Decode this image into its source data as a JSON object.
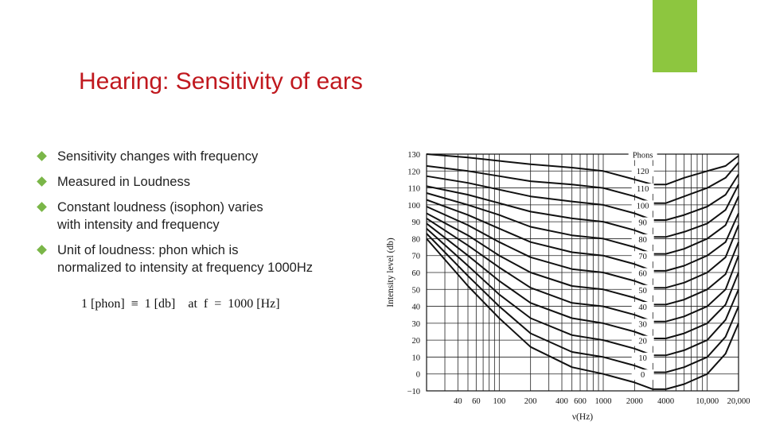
{
  "slide": {
    "title": "Hearing: Sensitivity of ears",
    "title_color": "#c0181e",
    "accent_color": "#8dc63f",
    "bullet_color": "#7ab648",
    "bullets": [
      "Sensitivity changes with frequency",
      "Measured in Loudness",
      "Constant loudness (isophon) varies\n with intensity and frequency",
      "Unit of loudness: phon which is\nnormalized to intensity at frequency 1000Hz"
    ],
    "formula": "1 [phon]  ≡  1 [db]    at  f  =  1000 [Hz]"
  },
  "chart_data": {
    "type": "line",
    "title": "",
    "xlabel": "ν(Hz)",
    "ylabel": "Intensity level (db)",
    "xscale": "log",
    "xlim": [
      20,
      20000
    ],
    "ylim": [
      -10,
      130
    ],
    "x_ticks": [
      {
        "value": 40,
        "label": "40"
      },
      {
        "value": 60,
        "label": "60"
      },
      {
        "value": 100,
        "label": "100"
      },
      {
        "value": 200,
        "label": "200"
      },
      {
        "value": 400,
        "label": "400"
      },
      {
        "value": 600,
        "label": "600"
      },
      {
        "value": 1000,
        "label": "1000"
      },
      {
        "value": 2000,
        "label": "2000"
      },
      {
        "value": 4000,
        "label": "4000"
      },
      {
        "value": 10000,
        "label": "10,000"
      },
      {
        "value": 20000,
        "label": "20,000"
      }
    ],
    "y_ticks": [
      {
        "value": 130,
        "label": "130"
      },
      {
        "value": 120,
        "label": "120"
      },
      {
        "value": 110,
        "label": "110"
      },
      {
        "value": 100,
        "label": "100"
      },
      {
        "value": 90,
        "label": "90"
      },
      {
        "value": 80,
        "label": "80"
      },
      {
        "value": 70,
        "label": "70"
      },
      {
        "value": 60,
        "label": "60"
      },
      {
        "value": 50,
        "label": "50"
      },
      {
        "value": 40,
        "label": "40"
      },
      {
        "value": 30,
        "label": "30"
      },
      {
        "value": 20,
        "label": "20"
      },
      {
        "value": 10,
        "label": "10"
      },
      {
        "value": 0,
        "label": "0"
      },
      {
        "value": -10,
        "label": "−10"
      }
    ],
    "legend_title": "Phons",
    "grid": true,
    "series": [
      {
        "name": "120",
        "x": [
          20,
          50,
          100,
          200,
          500,
          1000,
          2000,
          3000,
          4000,
          6000,
          10000,
          15000,
          20000
        ],
        "y": [
          130,
          128,
          126,
          124,
          122,
          120,
          115,
          112,
          112,
          116,
          120,
          123,
          129
        ]
      },
      {
        "name": "110",
        "x": [
          20,
          50,
          100,
          200,
          500,
          1000,
          2000,
          3000,
          4000,
          6000,
          10000,
          15000,
          20000
        ],
        "y": [
          123,
          120,
          117,
          114,
          112,
          110,
          105,
          101,
          101,
          105,
          110,
          116,
          125
        ]
      },
      {
        "name": "100",
        "x": [
          20,
          50,
          100,
          200,
          500,
          1000,
          2000,
          3000,
          4000,
          6000,
          10000,
          15000,
          20000
        ],
        "y": [
          117,
          113,
          109,
          105,
          102,
          100,
          95,
          91,
          91,
          94,
          99,
          106,
          118
        ]
      },
      {
        "name": "90",
        "x": [
          20,
          50,
          100,
          200,
          500,
          1000,
          2000,
          3000,
          4000,
          6000,
          10000,
          15000,
          20000
        ],
        "y": [
          111,
          106,
          101,
          96,
          92,
          90,
          85,
          81,
          81,
          84,
          89,
          97,
          112
        ]
      },
      {
        "name": "80",
        "x": [
          20,
          50,
          100,
          200,
          500,
          1000,
          2000,
          3000,
          4000,
          6000,
          10000,
          15000,
          20000
        ],
        "y": [
          107,
          100,
          94,
          87,
          82,
          80,
          75,
          71,
          71,
          74,
          80,
          88,
          105
        ]
      },
      {
        "name": "70",
        "x": [
          20,
          50,
          100,
          200,
          500,
          1000,
          2000,
          3000,
          4000,
          6000,
          10000,
          15000,
          20000
        ],
        "y": [
          103,
          94,
          86,
          78,
          72,
          70,
          65,
          61,
          61,
          64,
          70,
          78,
          95
        ]
      },
      {
        "name": "60",
        "x": [
          20,
          50,
          100,
          200,
          500,
          1000,
          2000,
          3000,
          4000,
          6000,
          10000,
          15000,
          20000
        ],
        "y": [
          99,
          88,
          78,
          69,
          62,
          60,
          55,
          51,
          51,
          54,
          60,
          69,
          88
        ]
      },
      {
        "name": "50",
        "x": [
          20,
          50,
          100,
          200,
          500,
          1000,
          2000,
          3000,
          4000,
          6000,
          10000,
          15000,
          20000
        ],
        "y": [
          95,
          82,
          70,
          60,
          52,
          50,
          45,
          41,
          41,
          44,
          50,
          59,
          78
        ]
      },
      {
        "name": "40",
        "x": [
          20,
          50,
          100,
          200,
          500,
          1000,
          2000,
          3000,
          4000,
          6000,
          10000,
          15000,
          20000
        ],
        "y": [
          92,
          76,
          63,
          51,
          42,
          40,
          35,
          31,
          31,
          34,
          40,
          50,
          70
        ]
      },
      {
        "name": "30",
        "x": [
          20,
          50,
          100,
          200,
          500,
          1000,
          2000,
          3000,
          4000,
          6000,
          10000,
          15000,
          20000
        ],
        "y": [
          89,
          70,
          55,
          42,
          33,
          30,
          25,
          21,
          21,
          24,
          30,
          41,
          60
        ]
      },
      {
        "name": "20",
        "x": [
          20,
          50,
          100,
          200,
          500,
          1000,
          2000,
          3000,
          4000,
          6000,
          10000,
          15000,
          20000
        ],
        "y": [
          86,
          64,
          47,
          33,
          23,
          20,
          15,
          11,
          11,
          14,
          20,
          32,
          50
        ]
      },
      {
        "name": "10",
        "x": [
          20,
          50,
          100,
          200,
          500,
          1000,
          2000,
          3000,
          4000,
          6000,
          10000,
          15000,
          20000
        ],
        "y": [
          83,
          58,
          40,
          24,
          13,
          10,
          5,
          1,
          1,
          4,
          10,
          22,
          40
        ]
      },
      {
        "name": "0",
        "x": [
          20,
          50,
          100,
          200,
          500,
          1000,
          2000,
          3000,
          4000,
          6000,
          10000,
          15000,
          20000
        ],
        "y": [
          80,
          52,
          33,
          16,
          4,
          0,
          -5,
          -9,
          -9,
          -6,
          0,
          12,
          30
        ]
      }
    ]
  }
}
